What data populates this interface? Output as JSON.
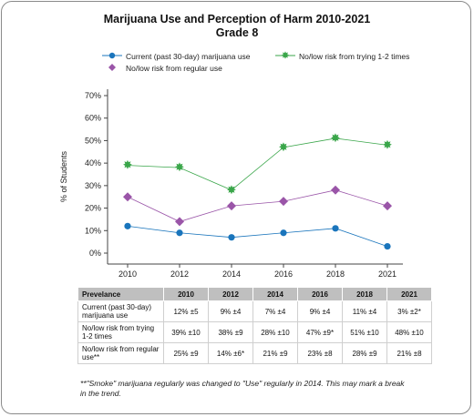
{
  "title_line1": "Marijuana Use and Perception of Harm 2010-2021",
  "title_line2": "Grade 8",
  "chart_data": {
    "type": "line",
    "title": "Marijuana Use and Perception of Harm 2010-2021 Grade 8",
    "ylabel": "% of Students",
    "xlabel": "",
    "x": [
      "2010",
      "2012",
      "2014",
      "2016",
      "2018",
      "2021"
    ],
    "ylim": [
      0,
      70
    ],
    "yticks": [
      "0%",
      "10%",
      "20%",
      "30%",
      "40%",
      "50%",
      "60%",
      "70%"
    ],
    "grid": false,
    "legend_position": "top",
    "series": [
      {
        "name": "Current (past 30-day) marijuana use",
        "values": [
          12,
          9,
          7,
          9,
          11,
          3
        ],
        "color": "#1a75bc",
        "marker": "circle"
      },
      {
        "name": "No/low risk from trying 1-2 times",
        "values": [
          39,
          38,
          28,
          47,
          51,
          48
        ],
        "color": "#3aa64a",
        "marker": "star"
      },
      {
        "name": "No/low risk from regular use",
        "values": [
          25,
          14,
          21,
          23,
          28,
          21
        ],
        "color": "#9a55a8",
        "marker": "diamond"
      }
    ]
  },
  "table": {
    "headers": [
      "Prevelance",
      "2010",
      "2012",
      "2014",
      "2016",
      "2018",
      "2021"
    ],
    "rows": [
      {
        "label": "Current (past 30-day) marijuana use",
        "cells": [
          "12% ±5",
          "9% ±4",
          "7% ±4",
          "9% ±4",
          "11% ±4",
          "3% ±2*"
        ]
      },
      {
        "label": "No/low risk from trying 1-2 times",
        "cells": [
          "39% ±10",
          "38% ±9",
          "28% ±10",
          "47% ±9*",
          "51% ±10",
          "48% ±10"
        ]
      },
      {
        "label": "No/low risk from regular use**",
        "cells": [
          "25% ±9",
          "14% ±6*",
          "21% ±9",
          "23% ±8",
          "28% ±9",
          "21% ±8"
        ]
      }
    ]
  },
  "footnote": "**\"Smoke\" marijuana regularly was changed to \"Use\" regularly in 2014. This may mark a break in the trend."
}
